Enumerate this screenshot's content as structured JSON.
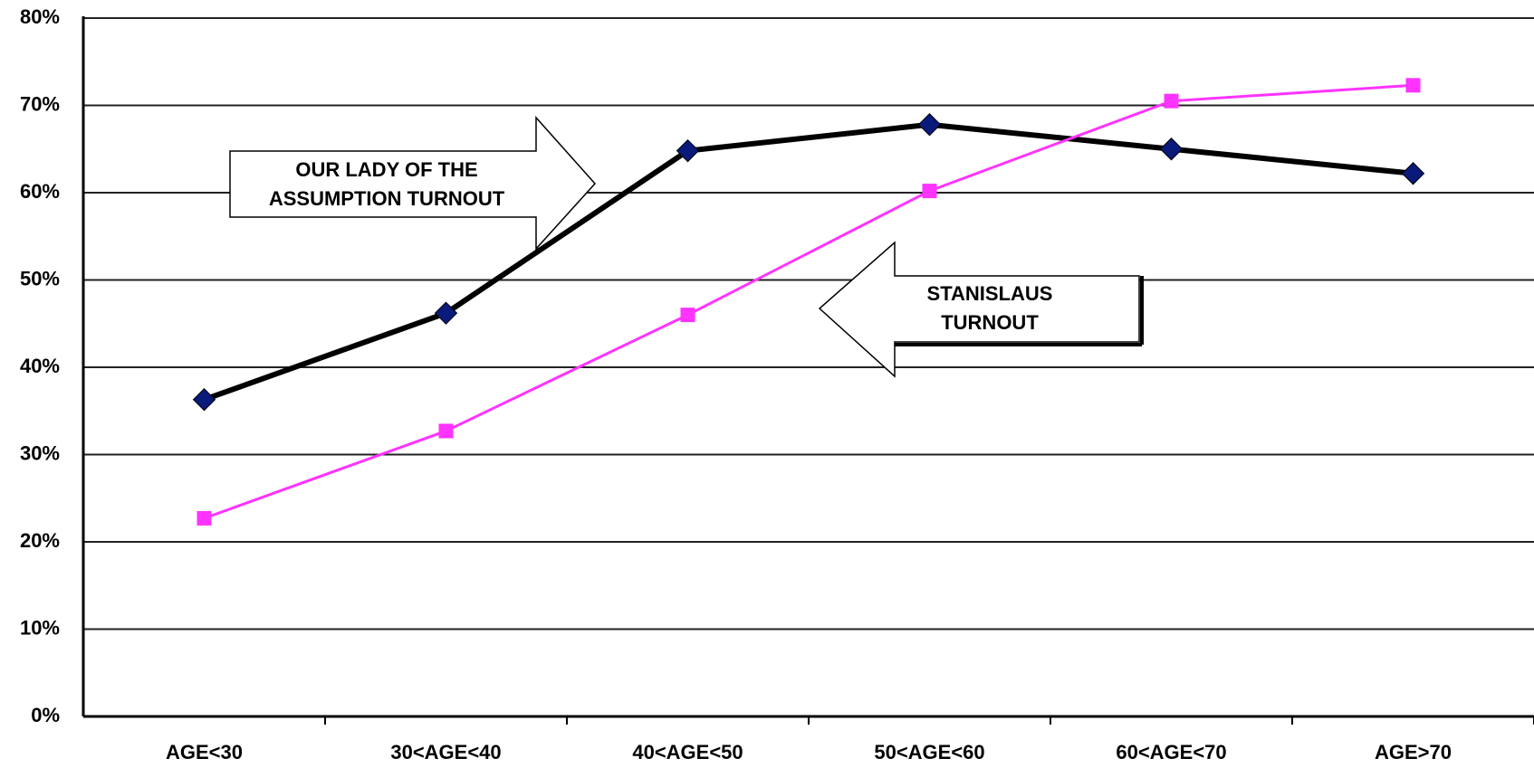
{
  "chart_data": {
    "type": "line",
    "categories": [
      "AGE<30",
      "30<AGE<40",
      "40<AGE<50",
      "50<AGE<60",
      "60<AGE<70",
      "AGE>70"
    ],
    "series": [
      {
        "name": "OUR LADY OF THE ASSUMPTION TURNOUT",
        "color": "#000000",
        "marker_color": "#0a1a7a",
        "marker": "diamond",
        "values": [
          36.3,
          46.2,
          64.8,
          67.8,
          65.0,
          62.2
        ]
      },
      {
        "name": "STANISLAUS TURNOUT",
        "color": "#ff33ff",
        "marker_color": "#ff33ff",
        "marker": "square",
        "values": [
          22.7,
          32.7,
          46.0,
          60.2,
          70.5,
          72.3
        ]
      }
    ],
    "ylim": [
      0,
      80
    ],
    "yticks": [
      {
        "value": 0,
        "label": "0%"
      },
      {
        "value": 10,
        "label": "10%"
      },
      {
        "value": 20,
        "label": "20%"
      },
      {
        "value": 30,
        "label": "30%"
      },
      {
        "value": 40,
        "label": "40%"
      },
      {
        "value": 50,
        "label": "50%"
      },
      {
        "value": 60,
        "label": "60%"
      },
      {
        "value": 70,
        "label": "70%"
      },
      {
        "value": 80,
        "label": "80%"
      }
    ],
    "grid": true
  }
}
